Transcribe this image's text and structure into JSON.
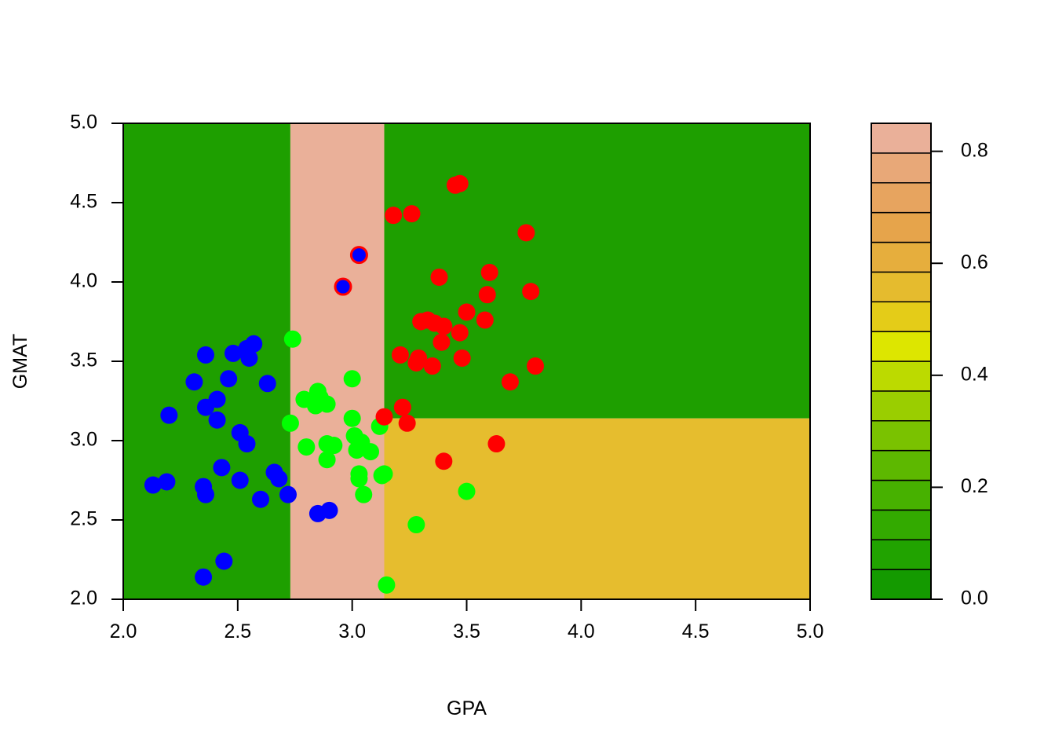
{
  "chart_data": {
    "type": "scatter",
    "title": "",
    "xlabel": "GPA",
    "ylabel": "GMAT",
    "xlim": [
      2.0,
      5.0
    ],
    "ylim": [
      2.0,
      5.0
    ],
    "x_ticks": [
      "2.0",
      "2.5",
      "3.0",
      "3.5",
      "4.0",
      "4.5",
      "5.0"
    ],
    "y_ticks": [
      "2.0",
      "2.5",
      "3.0",
      "3.5",
      "4.0",
      "4.5",
      "5.0"
    ],
    "grid": false,
    "background_regions": [
      {
        "x": [
          2.0,
          2.73
        ],
        "y": [
          2.0,
          5.0
        ],
        "value": 0.0,
        "color": "#1E9F00"
      },
      {
        "x": [
          2.73,
          3.14
        ],
        "y": [
          2.0,
          5.0
        ],
        "value": 0.84,
        "color": "#EAB099"
      },
      {
        "x": [
          3.14,
          5.0
        ],
        "y": [
          3.14,
          5.0
        ],
        "value": 0.0,
        "color": "#1E9F00"
      },
      {
        "x": [
          3.14,
          5.0
        ],
        "y": [
          2.0,
          3.14
        ],
        "value": 0.6,
        "color": "#E6BD2E"
      }
    ],
    "colorbar": {
      "ticks": [
        "0.0",
        "0.2",
        "0.4",
        "0.6",
        "0.8"
      ],
      "range": [
        0.0,
        0.85
      ],
      "colors": [
        "#149A00",
        "#21A300",
        "#33AA00",
        "#47B100",
        "#5DB800",
        "#7AC200",
        "#9ACE00",
        "#BCDA00",
        "#DDE600",
        "#E4CC18",
        "#E5BB2E",
        "#E6AE3D",
        "#E6A44B",
        "#E7A45F",
        "#E8A878",
        "#EAB099"
      ]
    },
    "series": [
      {
        "color": "#0000FF",
        "points": [
          [
            2.13,
            2.72
          ],
          [
            2.19,
            2.74
          ],
          [
            2.2,
            3.16
          ],
          [
            2.31,
            3.37
          ],
          [
            2.35,
            2.14
          ],
          [
            2.35,
            2.71
          ],
          [
            2.36,
            3.21
          ],
          [
            2.36,
            2.66
          ],
          [
            2.36,
            3.54
          ],
          [
            2.41,
            3.26
          ],
          [
            2.41,
            3.13
          ],
          [
            2.43,
            2.83
          ],
          [
            2.44,
            2.24
          ],
          [
            2.46,
            3.39
          ],
          [
            2.48,
            3.55
          ],
          [
            2.51,
            3.05
          ],
          [
            2.51,
            2.75
          ],
          [
            2.54,
            2.98
          ],
          [
            2.54,
            3.58
          ],
          [
            2.55,
            3.52
          ],
          [
            2.57,
            3.61
          ],
          [
            2.6,
            2.63
          ],
          [
            2.63,
            3.36
          ],
          [
            2.66,
            2.8
          ],
          [
            2.68,
            2.76
          ],
          [
            2.72,
            2.66
          ],
          [
            2.85,
            2.54
          ],
          [
            2.9,
            2.56
          ]
        ]
      },
      {
        "color": "#00FF00",
        "points": [
          [
            2.74,
            3.64
          ],
          [
            2.73,
            3.11
          ],
          [
            2.79,
            3.26
          ],
          [
            2.8,
            2.96
          ],
          [
            2.84,
            3.22
          ],
          [
            2.85,
            3.31
          ],
          [
            2.86,
            3.27
          ],
          [
            2.89,
            3.23
          ],
          [
            2.89,
            2.88
          ],
          [
            2.89,
            2.98
          ],
          [
            2.92,
            2.97
          ],
          [
            3.0,
            3.39
          ],
          [
            3.0,
            3.14
          ],
          [
            3.01,
            3.03
          ],
          [
            3.02,
            2.94
          ],
          [
            3.03,
            2.79
          ],
          [
            3.03,
            2.76
          ],
          [
            3.04,
            2.99
          ],
          [
            3.05,
            2.66
          ],
          [
            3.08,
            2.93
          ],
          [
            3.12,
            3.09
          ],
          [
            3.13,
            2.78
          ],
          [
            3.14,
            2.79
          ],
          [
            3.15,
            2.09
          ],
          [
            3.28,
            2.47
          ],
          [
            3.5,
            2.68
          ]
        ]
      },
      {
        "color": "#FF0000",
        "points": [
          [
            3.14,
            3.15
          ],
          [
            3.18,
            4.42
          ],
          [
            3.21,
            3.54
          ],
          [
            3.22,
            3.21
          ],
          [
            3.24,
            3.11
          ],
          [
            3.26,
            4.43
          ],
          [
            3.28,
            3.49
          ],
          [
            3.29,
            3.52
          ],
          [
            3.3,
            3.75
          ],
          [
            3.33,
            3.76
          ],
          [
            3.35,
            3.47
          ],
          [
            3.36,
            3.74
          ],
          [
            3.38,
            4.03
          ],
          [
            3.39,
            3.62
          ],
          [
            3.4,
            2.87
          ],
          [
            3.4,
            3.72
          ],
          [
            3.45,
            4.61
          ],
          [
            3.47,
            4.62
          ],
          [
            3.47,
            3.68
          ],
          [
            3.48,
            3.52
          ],
          [
            3.5,
            3.81
          ],
          [
            3.58,
            3.76
          ],
          [
            3.59,
            3.92
          ],
          [
            3.6,
            4.06
          ],
          [
            3.63,
            2.98
          ],
          [
            3.69,
            3.37
          ],
          [
            3.76,
            4.31
          ],
          [
            3.78,
            3.94
          ],
          [
            3.8,
            3.47
          ]
        ]
      },
      {
        "color": "#0000FF",
        "outline": "#FF0000",
        "points": [
          [
            2.96,
            3.97
          ],
          [
            3.03,
            4.17
          ]
        ]
      }
    ]
  }
}
